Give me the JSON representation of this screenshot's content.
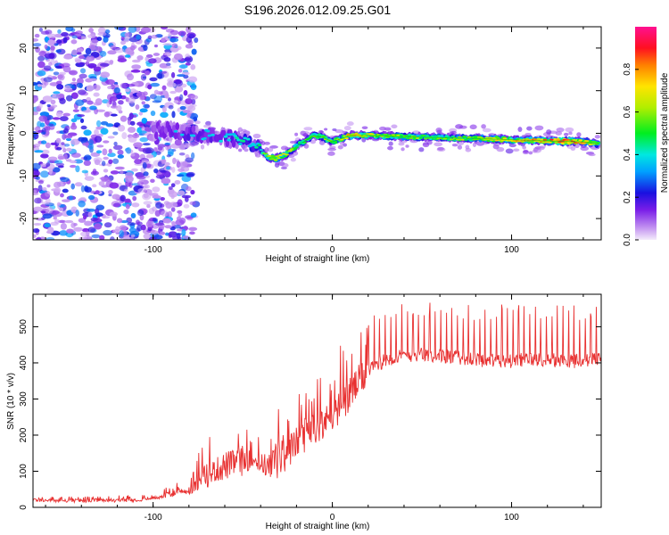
{
  "figure_title": "S196.2026.012.09.25.G01",
  "chart_data": [
    {
      "type": "heatmap",
      "title": "",
      "xlabel": "Height of straight line (km)",
      "ylabel": "Frequency (Hz)",
      "xlim": [
        -167,
        150
      ],
      "ylim": [
        -25,
        25
      ],
      "xticks": [
        -100,
        0,
        100
      ],
      "yticks": [
        -20,
        -10,
        0,
        10,
        20
      ],
      "colorbar": {
        "label": "Normalized spectral amplitude",
        "range": [
          0,
          1
        ],
        "ticks": [
          "0.0",
          "0.2",
          "0.4",
          "0.6",
          "0.8"
        ]
      },
      "ridge": {
        "x": [
          -100,
          -90,
          -80,
          -70,
          -60,
          -50,
          -42,
          -36,
          -32,
          -26,
          -20,
          -14,
          -10,
          -5,
          0,
          10,
          20,
          40,
          60,
          80,
          100,
          120,
          140,
          148
        ],
        "freq": [
          0.5,
          1.0,
          0.0,
          -0.5,
          -1.0,
          -1.5,
          -3.0,
          -5.5,
          -6.0,
          -5.0,
          -3.0,
          -1.5,
          -0.5,
          -1.0,
          -2.0,
          -0.5,
          -0.5,
          -0.8,
          -1.0,
          -1.2,
          -1.5,
          -1.8,
          -2.0,
          -2.5
        ],
        "amplitude": [
          0.25,
          0.3,
          0.35,
          0.35,
          0.35,
          0.4,
          0.45,
          0.55,
          0.7,
          0.6,
          0.55,
          0.5,
          0.6,
          0.55,
          0.6,
          0.75,
          0.65,
          0.6,
          0.55,
          0.6,
          0.7,
          0.85,
          0.8,
          0.6
        ]
      },
      "noise_region": {
        "x_from": -167,
        "x_to": -82,
        "amplitude_range": [
          0.0,
          0.3
        ]
      }
    },
    {
      "type": "line",
      "title": "",
      "xlabel": "Height of straight line (km)",
      "ylabel": "SNR (10 * v/v)",
      "xlim": [
        -167,
        150
      ],
      "ylim": [
        0,
        590
      ],
      "xticks": [
        -100,
        0,
        100
      ],
      "yticks": [
        0,
        100,
        200,
        300,
        400,
        500
      ],
      "color": "#e83030",
      "series": [
        {
          "name": "SNR",
          "x": [
            -167,
            -150,
            -130,
            -110,
            -100,
            -90,
            -85,
            -80,
            -75,
            -70,
            -65,
            -60,
            -55,
            -50,
            -45,
            -40,
            -35,
            -30,
            -25,
            -20,
            -15,
            -10,
            -5,
            0,
            5,
            10,
            15,
            20,
            25,
            30,
            40,
            50,
            60,
            70,
            80,
            90,
            100,
            110,
            120,
            130,
            140,
            150
          ],
          "baseline": [
            20,
            18,
            18,
            20,
            25,
            35,
            45,
            40,
            70,
            85,
            100,
            110,
            120,
            125,
            130,
            120,
            110,
            130,
            150,
            175,
            200,
            215,
            230,
            250,
            275,
            310,
            345,
            375,
            395,
            410,
            420,
            425,
            420,
            415,
            410,
            405,
            405,
            410,
            410,
            405,
            405,
            410
          ],
          "spike_max": [
            30,
            30,
            30,
            35,
            40,
            65,
            70,
            60,
            160,
            200,
            210,
            250,
            240,
            270,
            200,
            210,
            230,
            360,
            300,
            320,
            370,
            360,
            380,
            380,
            460,
            470,
            500,
            530,
            560,
            560,
            565,
            570,
            575,
            570,
            560,
            560,
            575,
            565,
            575,
            570,
            560,
            555
          ]
        }
      ]
    }
  ]
}
